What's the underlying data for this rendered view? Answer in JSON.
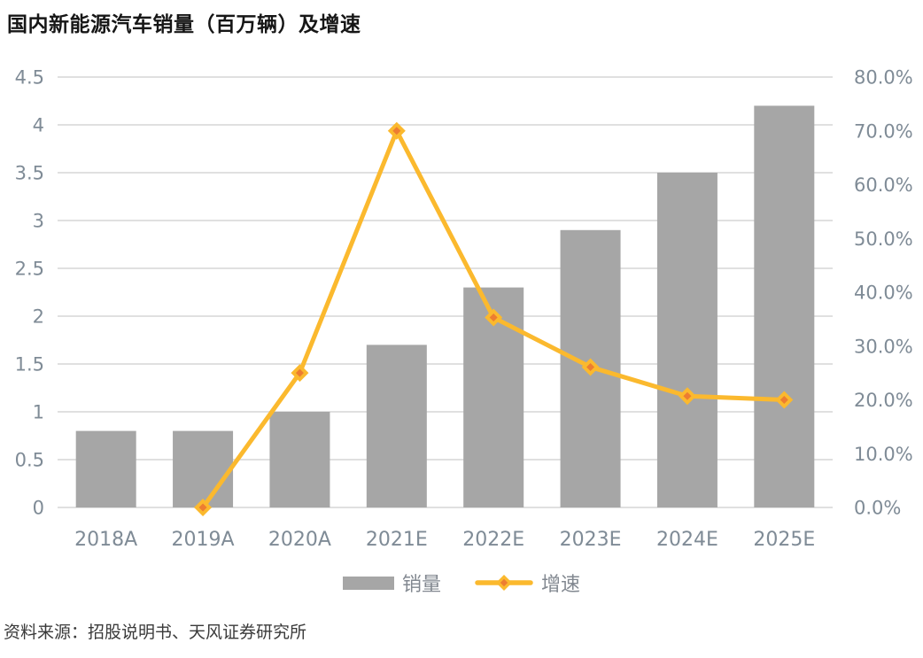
{
  "title": "国内新能源汽车销量（百万辆）及增速",
  "source": "资料来源：招股说明书、天风证券研究所",
  "legend": {
    "sales": "销量",
    "growth": "增速"
  },
  "colors": {
    "bar": "#A6A6A6",
    "line": "#FBB92E",
    "marker_center": "#ED7D31",
    "gridline": "#E0E0E0",
    "axis_label": "#7F8B96",
    "x_label": "#7F8B96",
    "title": "#161616",
    "source": "#3A3A3A",
    "background": "#FFFFFF"
  },
  "chart_data": {
    "type": "bar",
    "subtype": "combo bar+line, dual axis",
    "title": "国内新能源汽车销量（百万辆）及增速",
    "categories": [
      "2018A",
      "2019A",
      "2020A",
      "2021E",
      "2022E",
      "2023E",
      "2024E",
      "2025E"
    ],
    "series": [
      {
        "name": "销量",
        "type": "bar",
        "axis": "left",
        "unit": "百万辆",
        "values": [
          0.8,
          0.8,
          1.0,
          1.7,
          2.3,
          2.9,
          3.5,
          4.2
        ]
      },
      {
        "name": "增速",
        "type": "line",
        "axis": "right",
        "unit": "%",
        "values": [
          null,
          0.0,
          25.0,
          70.0,
          35.3,
          26.1,
          20.7,
          20.0
        ]
      }
    ],
    "left_axis": {
      "min": 0,
      "max": 4.5,
      "tick_values": [
        0,
        0.5,
        1,
        1.5,
        2,
        2.5,
        3,
        3.5,
        4,
        4.5
      ],
      "tick_labels": [
        "0",
        "0.5",
        "1",
        "1.5",
        "2",
        "2.5",
        "3",
        "3.5",
        "4",
        "4.5"
      ]
    },
    "right_axis": {
      "min": 0,
      "max": 80,
      "tick_values": [
        0,
        10,
        20,
        30,
        40,
        50,
        60,
        70,
        80
      ],
      "tick_labels": [
        "0.0%",
        "10.0%",
        "20.0%",
        "30.0%",
        "40.0%",
        "50.0%",
        "60.0%",
        "70.0%",
        "80.0%"
      ]
    },
    "grid": "horizontal gridlines at left-axis ticks",
    "legend_position": "bottom-center"
  }
}
